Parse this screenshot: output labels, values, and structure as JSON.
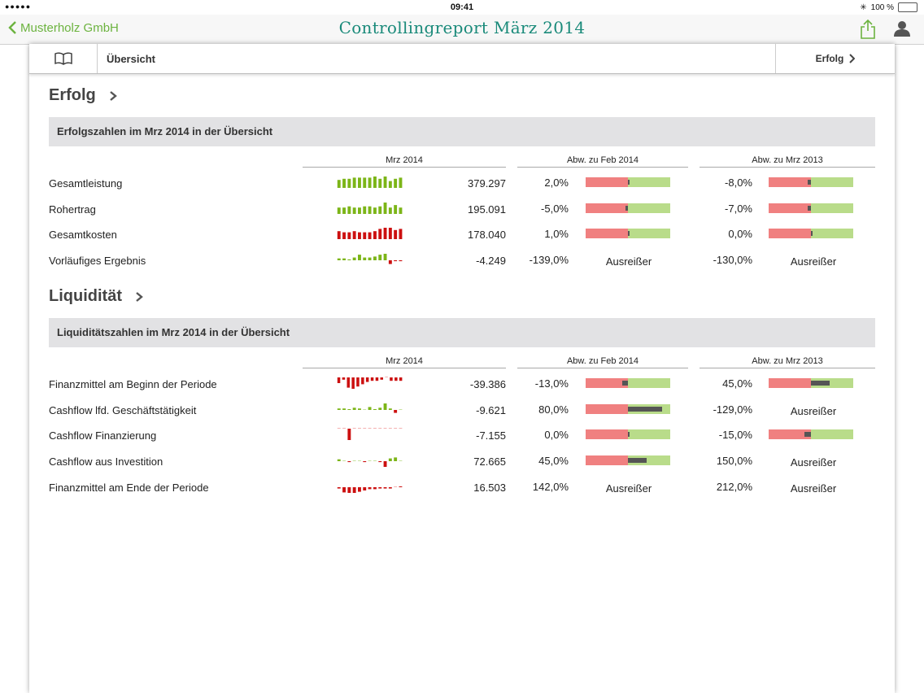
{
  "status": {
    "carrier": "●●●●● ",
    "time": "09:41",
    "battery": "100 %"
  },
  "nav": {
    "back": "Musterholz GmbH",
    "title": "Controllingreport März 2014"
  },
  "tabbar": {
    "current": "Übersicht",
    "next": "Erfolg"
  },
  "colors": {
    "accent": "#6cb33f",
    "title": "#1a8a7a",
    "neg": "#f08080",
    "pos": "#b9dc8a",
    "spark_pos": "#7cb518",
    "spark_neg": "#cc1010"
  },
  "erfolg": {
    "title": "Erfolg",
    "header": "Erfolgszahlen im Mrz 2014 in der Übersicht",
    "columns": [
      "Mrz 2014",
      "Abw. zu Feb 2014",
      "Abw. zu Mrz 2013"
    ],
    "rows": [
      {
        "label": "Gesamtleistung",
        "value": "379.297",
        "feb": "2,0%",
        "feb_type": "bullet",
        "feb_marker": 0.02,
        "mrz": "-8,0%",
        "mrz_type": "bullet",
        "mrz_marker": -0.08,
        "spark": [
          7,
          8,
          8,
          9,
          9,
          9,
          9,
          10,
          8,
          10,
          6,
          8,
          9
        ],
        "spark_color": "pos"
      },
      {
        "label": "Rohertrag",
        "value": "195.091",
        "feb": "-5,0%",
        "feb_type": "bullet",
        "feb_marker": -0.05,
        "mrz": "-7,0%",
        "mrz_type": "bullet",
        "mrz_marker": -0.07,
        "spark": [
          5,
          5,
          6,
          5,
          5,
          6,
          6,
          5,
          6,
          9,
          5,
          7,
          5
        ],
        "spark_color": "pos"
      },
      {
        "label": "Gesamtkosten",
        "value": "178.040",
        "feb": "1,0%",
        "feb_type": "bullet",
        "feb_marker": 0.01,
        "mrz": "0,0%",
        "mrz_type": "bullet",
        "mrz_marker": 0.0,
        "spark": [
          7,
          6,
          6,
          7,
          6,
          6,
          6,
          7,
          9,
          10,
          10,
          8,
          9
        ],
        "spark_color": "neg"
      },
      {
        "label": "Vorläufiges Ergebnis",
        "value": "-4.249",
        "feb": "-139,0%",
        "feb_type": "text",
        "feb_text": "Ausreißer",
        "mrz": "-130,0%",
        "mrz_type": "text",
        "mrz_text": "Ausreißer",
        "spark": [
          2,
          2,
          1,
          3,
          6,
          3,
          3,
          4,
          6,
          7,
          -4,
          -1,
          -1
        ],
        "spark_color": "mixed"
      }
    ]
  },
  "liquiditaet": {
    "title": "Liquidität",
    "header": "Liquiditätszahlen im Mrz 2014 in der Übersicht",
    "columns": [
      "Mrz 2014",
      "Abw. zu Feb 2014",
      "Abw. zu Mrz 2013"
    ],
    "rows": [
      {
        "label": "Finanzmittel am Beginn der Periode",
        "value": "-39.386",
        "feb": "-13,0%",
        "feb_type": "bullet",
        "feb_marker": -0.13,
        "mrz": "45,0%",
        "mrz_type": "bullet",
        "mrz_marker": 0.45,
        "spark": [
          -5,
          -2,
          -9,
          -10,
          -8,
          -6,
          -4,
          -3,
          -3,
          -2,
          0,
          -3,
          -3,
          -3
        ],
        "spark_color": "neg"
      },
      {
        "label": "Cashflow lfd. Geschäftstätigkeit",
        "value": "-9.621",
        "feb": "80,0%",
        "feb_type": "bullet",
        "feb_marker": 0.8,
        "mrz": "-129,0%",
        "mrz_type": "text",
        "mrz_text": "Ausreißer",
        "spark": [
          2,
          2,
          1,
          3,
          2,
          0,
          4,
          1,
          3,
          9,
          2,
          -4,
          0
        ],
        "spark_color": "mixed"
      },
      {
        "label": "Cashflow Finanzierung",
        "value": "-7.155",
        "feb": "0,0%",
        "feb_type": "bullet",
        "feb_marker": 0.0,
        "mrz": "-15,0%",
        "mrz_type": "bullet",
        "mrz_marker": -0.15,
        "spark": [
          0,
          0,
          -9,
          0,
          0,
          0,
          0,
          0,
          0,
          0,
          0,
          0,
          0
        ],
        "spark_color": "neg"
      },
      {
        "label": "Cashflow aus Investition",
        "value": "72.665",
        "feb": "45,0%",
        "feb_type": "bullet",
        "feb_marker": 0.45,
        "mrz": "150,0%",
        "mrz_type": "text",
        "mrz_text": "Ausreißer",
        "spark": [
          2,
          0,
          -1,
          0,
          0,
          -1,
          0,
          0,
          -1,
          -7,
          3,
          4,
          0
        ],
        "spark_color": "mixed"
      },
      {
        "label": "Finanzmittel am Ende der Periode",
        "value": "16.503",
        "feb": "142,0%",
        "feb_type": "text",
        "feb_text": "Ausreißer",
        "mrz": "212,0%",
        "mrz_type": "text",
        "mrz_text": "Ausreißer",
        "spark": [
          -2,
          -8,
          -10,
          -9,
          -7,
          -5,
          -3,
          -3,
          -2,
          -2,
          -2,
          0,
          1
        ],
        "spark_color": "neg"
      }
    ]
  }
}
